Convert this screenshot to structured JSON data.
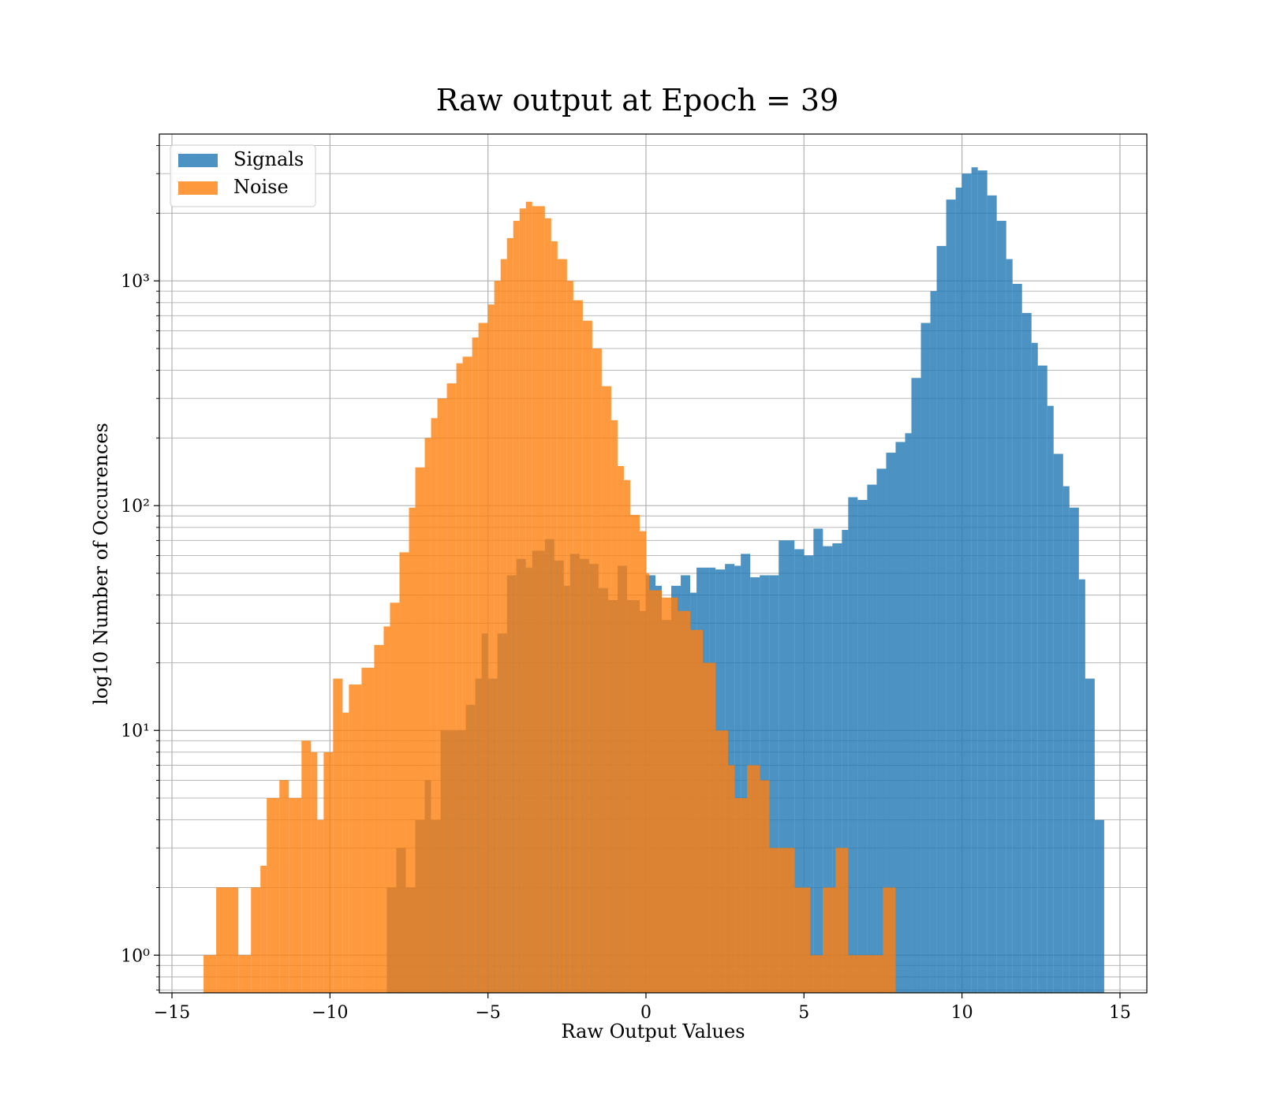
{
  "chart_data": {
    "type": "histogram",
    "title": "Raw output at Epoch = 39",
    "xlabel": "Raw Output Values",
    "ylabel": "log10 Number of Occurences",
    "xlim": [
      -15.4,
      15.85
    ],
    "xticks": [
      -15,
      -10,
      -5,
      0,
      5,
      10,
      15
    ],
    "xtick_labels": [
      "−15",
      "−10",
      "−5",
      "0",
      "5",
      "10",
      "15"
    ],
    "yscale": "log",
    "ylim": [
      0.68,
      4500
    ],
    "yticks": [
      1,
      10,
      100,
      1000
    ],
    "ytick_labels": [
      "10⁰",
      "10¹",
      "10²",
      "10³"
    ],
    "grid": true,
    "legend_position": "top-left",
    "series": [
      {
        "name": "Signals",
        "color": "#1f77b4",
        "opacity": 0.8,
        "bins": [
          [
            -8.2,
            -7.9,
            2
          ],
          [
            -7.9,
            -7.6,
            3
          ],
          [
            -7.6,
            -7.3,
            2
          ],
          [
            -7.3,
            -7.0,
            4
          ],
          [
            -7.0,
            -6.8,
            6
          ],
          [
            -6.8,
            -6.5,
            4
          ],
          [
            -6.5,
            -6.2,
            10
          ],
          [
            -6.2,
            -5.7,
            10
          ],
          [
            -5.7,
            -5.4,
            13
          ],
          [
            -5.4,
            -5.2,
            17
          ],
          [
            -5.2,
            -5.0,
            27
          ],
          [
            -5.0,
            -4.7,
            17
          ],
          [
            -4.7,
            -4.4,
            27
          ],
          [
            -4.4,
            -4.1,
            49
          ],
          [
            -4.1,
            -3.8,
            58
          ],
          [
            -3.8,
            -3.6,
            53
          ],
          [
            -3.6,
            -3.2,
            63
          ],
          [
            -3.2,
            -2.9,
            71
          ],
          [
            -2.9,
            -2.6,
            57
          ],
          [
            -2.6,
            -2.4,
            44
          ],
          [
            -2.4,
            -2.1,
            61
          ],
          [
            -2.1,
            -1.8,
            58
          ],
          [
            -1.8,
            -1.5,
            55
          ],
          [
            -1.5,
            -1.2,
            43
          ],
          [
            -1.2,
            -0.9,
            38
          ],
          [
            -0.9,
            -0.6,
            54
          ],
          [
            -0.6,
            -0.2,
            38
          ],
          [
            -0.2,
            0.0,
            34
          ],
          [
            0.0,
            0.3,
            49
          ],
          [
            0.3,
            0.5,
            44
          ],
          [
            0.5,
            0.8,
            31
          ],
          [
            0.8,
            1.1,
            44
          ],
          [
            1.1,
            1.4,
            49
          ],
          [
            1.4,
            1.6,
            41
          ],
          [
            1.6,
            2.0,
            53
          ],
          [
            2.0,
            2.2,
            53
          ],
          [
            2.2,
            2.5,
            52
          ],
          [
            2.5,
            2.8,
            55
          ],
          [
            2.8,
            3.0,
            54
          ],
          [
            3.0,
            3.3,
            61
          ],
          [
            3.3,
            3.6,
            48
          ],
          [
            3.6,
            3.9,
            49
          ],
          [
            3.9,
            4.2,
            49
          ],
          [
            4.2,
            4.7,
            70
          ],
          [
            4.7,
            5.0,
            64
          ],
          [
            5.0,
            5.3,
            60
          ],
          [
            5.3,
            5.6,
            79
          ],
          [
            5.6,
            5.9,
            66
          ],
          [
            5.9,
            6.2,
            68
          ],
          [
            6.2,
            6.4,
            78
          ],
          [
            6.4,
            6.7,
            109
          ],
          [
            6.7,
            7.0,
            106
          ],
          [
            7.0,
            7.3,
            124
          ],
          [
            7.3,
            7.6,
            146
          ],
          [
            7.6,
            7.9,
            172
          ],
          [
            7.9,
            8.2,
            192
          ],
          [
            8.2,
            8.4,
            210
          ],
          [
            8.4,
            8.7,
            370
          ],
          [
            8.7,
            9.0,
            650
          ],
          [
            9.0,
            9.2,
            900
          ],
          [
            9.2,
            9.5,
            1430
          ],
          [
            9.5,
            9.8,
            2300
          ],
          [
            9.8,
            10.0,
            2600
          ],
          [
            10.0,
            10.3,
            3000
          ],
          [
            10.3,
            10.5,
            3200
          ],
          [
            10.5,
            10.8,
            3100
          ],
          [
            10.8,
            11.1,
            2400
          ],
          [
            11.1,
            11.4,
            1850
          ],
          [
            11.4,
            11.6,
            1250
          ],
          [
            11.6,
            11.9,
            970
          ],
          [
            11.9,
            12.2,
            720
          ],
          [
            12.2,
            12.4,
            530
          ],
          [
            12.4,
            12.7,
            420
          ],
          [
            12.7,
            12.9,
            278
          ],
          [
            12.9,
            13.2,
            170
          ],
          [
            13.2,
            13.4,
            122
          ],
          [
            13.4,
            13.7,
            98
          ],
          [
            13.7,
            13.9,
            47
          ],
          [
            13.9,
            14.2,
            17
          ],
          [
            14.2,
            14.5,
            4
          ]
        ]
      },
      {
        "name": "Noise",
        "color": "#ff7f0e",
        "opacity": 0.8,
        "bins": [
          [
            -14.0,
            -13.6,
            1
          ],
          [
            -13.6,
            -12.9,
            2
          ],
          [
            -12.9,
            -12.5,
            1
          ],
          [
            -12.5,
            -12.2,
            2
          ],
          [
            -12.2,
            -12.0,
            2.5
          ],
          [
            -12.0,
            -11.6,
            5
          ],
          [
            -11.6,
            -11.3,
            6
          ],
          [
            -11.3,
            -10.9,
            5
          ],
          [
            -10.9,
            -10.6,
            9
          ],
          [
            -10.6,
            -10.4,
            8
          ],
          [
            -10.4,
            -10.2,
            4
          ],
          [
            -10.2,
            -9.9,
            8
          ],
          [
            -9.9,
            -9.6,
            17
          ],
          [
            -9.6,
            -9.4,
            12
          ],
          [
            -9.4,
            -9.0,
            16
          ],
          [
            -9.0,
            -8.6,
            19
          ],
          [
            -8.6,
            -8.3,
            24
          ],
          [
            -8.3,
            -8.1,
            29
          ],
          [
            -8.1,
            -7.8,
            37
          ],
          [
            -7.8,
            -7.5,
            62
          ],
          [
            -7.5,
            -7.3,
            98
          ],
          [
            -7.3,
            -7.0,
            148
          ],
          [
            -7.0,
            -6.8,
            200
          ],
          [
            -6.8,
            -6.6,
            245
          ],
          [
            -6.6,
            -6.3,
            300
          ],
          [
            -6.3,
            -6.0,
            350
          ],
          [
            -6.0,
            -5.8,
            430
          ],
          [
            -5.8,
            -5.5,
            460
          ],
          [
            -5.5,
            -5.3,
            560
          ],
          [
            -5.3,
            -5.0,
            650
          ],
          [
            -5.0,
            -4.8,
            785
          ],
          [
            -4.8,
            -4.6,
            1000
          ],
          [
            -4.6,
            -4.4,
            1250
          ],
          [
            -4.4,
            -4.2,
            1550
          ],
          [
            -4.2,
            -4.0,
            1850
          ],
          [
            -4.0,
            -3.8,
            2100
          ],
          [
            -3.8,
            -3.6,
            2250
          ],
          [
            -3.6,
            -3.2,
            2150
          ],
          [
            -3.2,
            -3.0,
            1900
          ],
          [
            -3.0,
            -2.8,
            1500
          ],
          [
            -2.8,
            -2.5,
            1250
          ],
          [
            -2.5,
            -2.3,
            1000
          ],
          [
            -2.3,
            -2.0,
            820
          ],
          [
            -2.0,
            -1.7,
            665
          ],
          [
            -1.7,
            -1.4,
            500
          ],
          [
            -1.4,
            -1.1,
            340
          ],
          [
            -1.1,
            -0.9,
            240
          ],
          [
            -0.9,
            -0.7,
            150
          ],
          [
            -0.7,
            -0.5,
            130
          ],
          [
            -0.5,
            -0.2,
            91
          ],
          [
            -0.2,
            0.0,
            77
          ],
          [
            0.0,
            0.1,
            50
          ],
          [
            0.1,
            0.5,
            42
          ],
          [
            0.5,
            1.0,
            39
          ],
          [
            1.0,
            1.4,
            34
          ],
          [
            1.4,
            1.8,
            28
          ],
          [
            1.8,
            2.2,
            20
          ],
          [
            2.2,
            2.6,
            10
          ],
          [
            2.6,
            2.8,
            7
          ],
          [
            2.8,
            3.2,
            5
          ],
          [
            3.2,
            3.6,
            7
          ],
          [
            3.6,
            3.9,
            6
          ],
          [
            3.9,
            4.2,
            3
          ],
          [
            4.2,
            4.7,
            3
          ],
          [
            4.7,
            5.2,
            2
          ],
          [
            5.2,
            5.6,
            1
          ],
          [
            5.6,
            6.0,
            2
          ],
          [
            6.0,
            6.4,
            3
          ],
          [
            6.4,
            7.0,
            1
          ],
          [
            7.0,
            7.5,
            1
          ],
          [
            7.5,
            7.9,
            2
          ]
        ]
      }
    ]
  }
}
